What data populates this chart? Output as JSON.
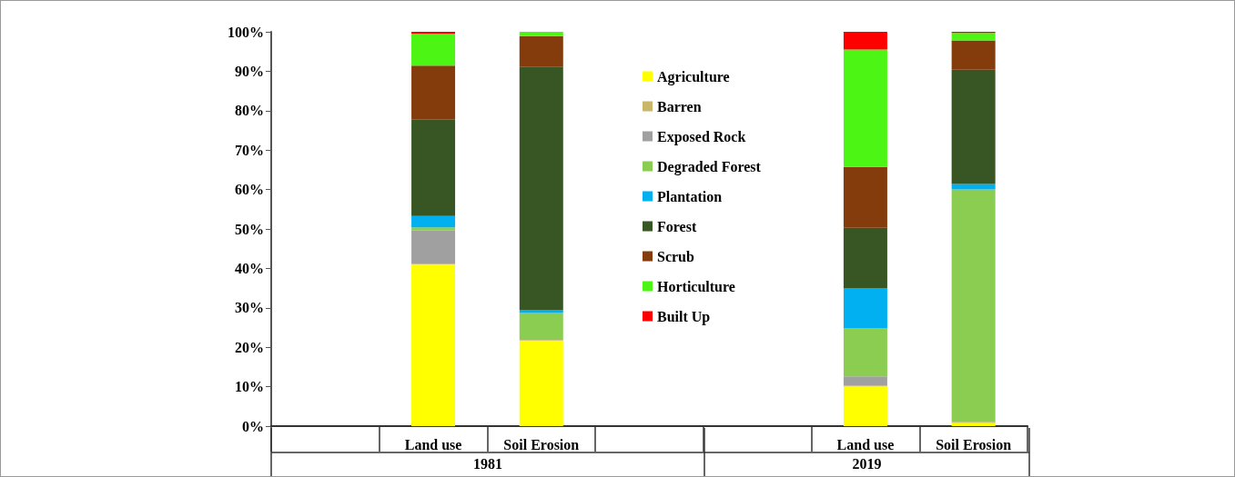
{
  "chart_data": {
    "type": "bar",
    "stacked": true,
    "categories": [
      null,
      "Land use",
      "Soil Erosion",
      null,
      null,
      "Land use",
      "Soil Erosion"
    ],
    "series": [
      {
        "name": "Agriculture",
        "color": "#ffff00",
        "values": [
          null,
          41.0,
          21.7,
          null,
          null,
          10.1,
          0.8
        ]
      },
      {
        "name": "Barren",
        "color": "#c9b66b",
        "values": [
          null,
          0.2,
          0.2,
          null,
          null,
          0.2,
          0.3
        ]
      },
      {
        "name": "Exposed Rock",
        "color": "#a0a0a0",
        "values": [
          null,
          8.4,
          0,
          null,
          null,
          2.3,
          0
        ]
      },
      {
        "name": "Degraded Forest",
        "color": "#8bcd50",
        "values": [
          null,
          0.8,
          6.8,
          null,
          null,
          12.3,
          58.9
        ]
      },
      {
        "name": "Plantation",
        "color": "#00b0f0",
        "values": [
          null,
          2.9,
          0.8,
          null,
          null,
          10.1,
          1.4
        ]
      },
      {
        "name": "Forest",
        "color": "#375623",
        "values": [
          null,
          24.4,
          61.7,
          null,
          null,
          15.3,
          29.0
        ]
      },
      {
        "name": "Scrub",
        "color": "#843c0c",
        "values": [
          null,
          13.7,
          7.7,
          null,
          null,
          15.4,
          7.4
        ]
      },
      {
        "name": "Horticulture",
        "color": "#4cf514",
        "values": [
          null,
          8.1,
          1.1,
          null,
          null,
          29.8,
          1.9
        ]
      },
      {
        "name": "Built Up",
        "color": "#ff0000",
        "values": [
          null,
          0.5,
          0,
          null,
          null,
          4.5,
          0.3
        ]
      }
    ],
    "ylim": [
      0,
      100
    ],
    "yticks": [
      {
        "value": 0,
        "label": "0%"
      },
      {
        "value": 10,
        "label": "10%"
      },
      {
        "value": 20,
        "label": "20%"
      },
      {
        "value": 30,
        "label": "30%"
      },
      {
        "value": 40,
        "label": "40%"
      },
      {
        "value": 50,
        "label": "50%"
      },
      {
        "value": 60,
        "label": "60%"
      },
      {
        "value": 70,
        "label": "70%"
      },
      {
        "value": 80,
        "label": "80%"
      },
      {
        "value": 90,
        "label": "90%"
      },
      {
        "value": 100,
        "label": "100%"
      }
    ],
    "grid": false,
    "legend": "top",
    "annotations": [
      "1981",
      "2019"
    ]
  }
}
